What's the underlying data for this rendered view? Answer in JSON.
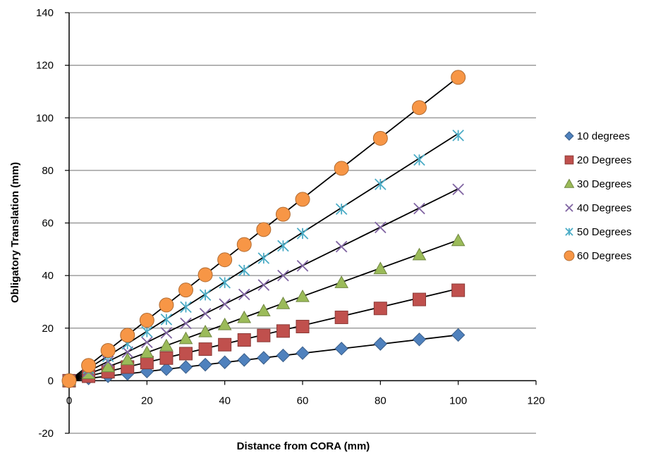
{
  "chart_data": {
    "type": "scatter",
    "title": "",
    "xlabel": "Distance from CORA (mm)",
    "ylabel": "Obligatory Translation (mm)",
    "xlim": [
      0,
      120
    ],
    "ylim": [
      -20,
      140
    ],
    "x_ticks": [
      0,
      20,
      40,
      60,
      80,
      100,
      120
    ],
    "y_ticks": [
      -20,
      0,
      20,
      40,
      60,
      80,
      100,
      120,
      140
    ],
    "grid": "horizontal",
    "legend_position": "right",
    "x": [
      0,
      5,
      10,
      15,
      20,
      25,
      30,
      35,
      40,
      45,
      50,
      55,
      60,
      70,
      80,
      90,
      100
    ],
    "series": [
      {
        "name": "10 degrees",
        "marker": "diamond",
        "color": "#4f81bd",
        "values": [
          0,
          0.9,
          1.7,
          2.6,
          3.5,
          4.4,
          5.2,
          6.1,
          7.0,
          7.9,
          8.7,
          9.6,
          10.5,
          12.2,
          14.0,
          15.7,
          17.4
        ],
        "trendline_end": 17.4
      },
      {
        "name": "20 Degrees",
        "marker": "square",
        "color": "#c0504d",
        "values": [
          0,
          1.7,
          3.4,
          5.2,
          6.9,
          8.6,
          10.3,
          12.0,
          13.7,
          15.5,
          17.2,
          18.9,
          20.6,
          24.1,
          27.5,
          30.9,
          34.4
        ],
        "trendline_end": 35
      },
      {
        "name": "30 Degrees",
        "marker": "triangle",
        "color": "#9bbb59",
        "values": [
          0,
          2.7,
          5.3,
          8.0,
          10.7,
          13.3,
          16.0,
          18.6,
          21.3,
          24.0,
          26.6,
          29.3,
          32.0,
          37.3,
          42.6,
          47.9,
          53.3
        ],
        "trendline_end": 53.5
      },
      {
        "name": "40 Degrees",
        "marker": "x",
        "color": "#8064a2",
        "values": [
          0,
          3.6,
          7.3,
          10.9,
          14.6,
          18.2,
          21.8,
          25.5,
          29.1,
          32.8,
          36.4,
          40.0,
          43.7,
          51.0,
          58.3,
          65.5,
          72.8
        ],
        "trendline_end": 73
      },
      {
        "name": "50 Degrees",
        "marker": "asterisk",
        "color": "#4bacc6",
        "values": [
          0,
          4.7,
          9.3,
          14.0,
          18.6,
          23.3,
          28.0,
          32.6,
          37.3,
          42.0,
          46.6,
          51.3,
          56.0,
          65.3,
          74.7,
          84.0,
          93.3
        ],
        "trendline_end": 94
      },
      {
        "name": "60 Degrees",
        "marker": "circle",
        "color": "#f79646",
        "values": [
          0,
          5.8,
          11.5,
          17.3,
          23.0,
          28.8,
          34.5,
          40.3,
          46.0,
          51.8,
          57.5,
          63.3,
          69.0,
          80.8,
          92.2,
          103.9,
          115.4
        ],
        "trendline_end": 115.5
      }
    ]
  }
}
